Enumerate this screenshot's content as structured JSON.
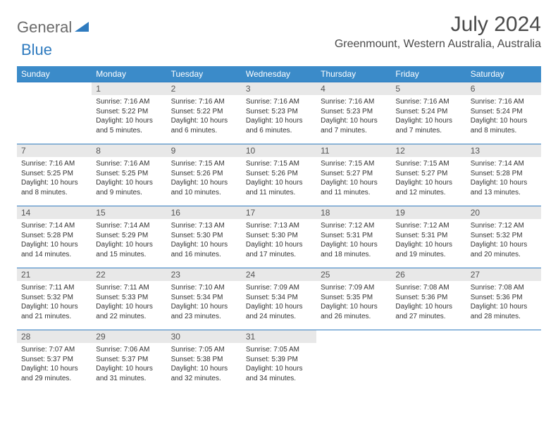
{
  "logo": {
    "word1": "General",
    "word2": "Blue"
  },
  "title": "July 2024",
  "location": "Greenmount, Western Australia, Australia",
  "colors": {
    "header_bg": "#3b8bc9",
    "row_border": "#2f7bbf",
    "daynum_bg": "#e8e8e8",
    "text": "#333333",
    "title_text": "#4a4a4a",
    "logo_gray": "#6b6b6b",
    "logo_blue": "#2f7bbf"
  },
  "day_headers": [
    "Sunday",
    "Monday",
    "Tuesday",
    "Wednesday",
    "Thursday",
    "Friday",
    "Saturday"
  ],
  "weeks": [
    [
      {
        "n": "",
        "sr": "",
        "ss": "",
        "dl": "",
        "empty": true
      },
      {
        "n": "1",
        "sr": "Sunrise: 7:16 AM",
        "ss": "Sunset: 5:22 PM",
        "dl": "Daylight: 10 hours and 5 minutes."
      },
      {
        "n": "2",
        "sr": "Sunrise: 7:16 AM",
        "ss": "Sunset: 5:22 PM",
        "dl": "Daylight: 10 hours and 6 minutes."
      },
      {
        "n": "3",
        "sr": "Sunrise: 7:16 AM",
        "ss": "Sunset: 5:23 PM",
        "dl": "Daylight: 10 hours and 6 minutes."
      },
      {
        "n": "4",
        "sr": "Sunrise: 7:16 AM",
        "ss": "Sunset: 5:23 PM",
        "dl": "Daylight: 10 hours and 7 minutes."
      },
      {
        "n": "5",
        "sr": "Sunrise: 7:16 AM",
        "ss": "Sunset: 5:24 PM",
        "dl": "Daylight: 10 hours and 7 minutes."
      },
      {
        "n": "6",
        "sr": "Sunrise: 7:16 AM",
        "ss": "Sunset: 5:24 PM",
        "dl": "Daylight: 10 hours and 8 minutes."
      }
    ],
    [
      {
        "n": "7",
        "sr": "Sunrise: 7:16 AM",
        "ss": "Sunset: 5:25 PM",
        "dl": "Daylight: 10 hours and 8 minutes."
      },
      {
        "n": "8",
        "sr": "Sunrise: 7:16 AM",
        "ss": "Sunset: 5:25 PM",
        "dl": "Daylight: 10 hours and 9 minutes."
      },
      {
        "n": "9",
        "sr": "Sunrise: 7:15 AM",
        "ss": "Sunset: 5:26 PM",
        "dl": "Daylight: 10 hours and 10 minutes."
      },
      {
        "n": "10",
        "sr": "Sunrise: 7:15 AM",
        "ss": "Sunset: 5:26 PM",
        "dl": "Daylight: 10 hours and 11 minutes."
      },
      {
        "n": "11",
        "sr": "Sunrise: 7:15 AM",
        "ss": "Sunset: 5:27 PM",
        "dl": "Daylight: 10 hours and 11 minutes."
      },
      {
        "n": "12",
        "sr": "Sunrise: 7:15 AM",
        "ss": "Sunset: 5:27 PM",
        "dl": "Daylight: 10 hours and 12 minutes."
      },
      {
        "n": "13",
        "sr": "Sunrise: 7:14 AM",
        "ss": "Sunset: 5:28 PM",
        "dl": "Daylight: 10 hours and 13 minutes."
      }
    ],
    [
      {
        "n": "14",
        "sr": "Sunrise: 7:14 AM",
        "ss": "Sunset: 5:28 PM",
        "dl": "Daylight: 10 hours and 14 minutes."
      },
      {
        "n": "15",
        "sr": "Sunrise: 7:14 AM",
        "ss": "Sunset: 5:29 PM",
        "dl": "Daylight: 10 hours and 15 minutes."
      },
      {
        "n": "16",
        "sr": "Sunrise: 7:13 AM",
        "ss": "Sunset: 5:30 PM",
        "dl": "Daylight: 10 hours and 16 minutes."
      },
      {
        "n": "17",
        "sr": "Sunrise: 7:13 AM",
        "ss": "Sunset: 5:30 PM",
        "dl": "Daylight: 10 hours and 17 minutes."
      },
      {
        "n": "18",
        "sr": "Sunrise: 7:12 AM",
        "ss": "Sunset: 5:31 PM",
        "dl": "Daylight: 10 hours and 18 minutes."
      },
      {
        "n": "19",
        "sr": "Sunrise: 7:12 AM",
        "ss": "Sunset: 5:31 PM",
        "dl": "Daylight: 10 hours and 19 minutes."
      },
      {
        "n": "20",
        "sr": "Sunrise: 7:12 AM",
        "ss": "Sunset: 5:32 PM",
        "dl": "Daylight: 10 hours and 20 minutes."
      }
    ],
    [
      {
        "n": "21",
        "sr": "Sunrise: 7:11 AM",
        "ss": "Sunset: 5:32 PM",
        "dl": "Daylight: 10 hours and 21 minutes."
      },
      {
        "n": "22",
        "sr": "Sunrise: 7:11 AM",
        "ss": "Sunset: 5:33 PM",
        "dl": "Daylight: 10 hours and 22 minutes."
      },
      {
        "n": "23",
        "sr": "Sunrise: 7:10 AM",
        "ss": "Sunset: 5:34 PM",
        "dl": "Daylight: 10 hours and 23 minutes."
      },
      {
        "n": "24",
        "sr": "Sunrise: 7:09 AM",
        "ss": "Sunset: 5:34 PM",
        "dl": "Daylight: 10 hours and 24 minutes."
      },
      {
        "n": "25",
        "sr": "Sunrise: 7:09 AM",
        "ss": "Sunset: 5:35 PM",
        "dl": "Daylight: 10 hours and 26 minutes."
      },
      {
        "n": "26",
        "sr": "Sunrise: 7:08 AM",
        "ss": "Sunset: 5:36 PM",
        "dl": "Daylight: 10 hours and 27 minutes."
      },
      {
        "n": "27",
        "sr": "Sunrise: 7:08 AM",
        "ss": "Sunset: 5:36 PM",
        "dl": "Daylight: 10 hours and 28 minutes."
      }
    ],
    [
      {
        "n": "28",
        "sr": "Sunrise: 7:07 AM",
        "ss": "Sunset: 5:37 PM",
        "dl": "Daylight: 10 hours and 29 minutes."
      },
      {
        "n": "29",
        "sr": "Sunrise: 7:06 AM",
        "ss": "Sunset: 5:37 PM",
        "dl": "Daylight: 10 hours and 31 minutes."
      },
      {
        "n": "30",
        "sr": "Sunrise: 7:05 AM",
        "ss": "Sunset: 5:38 PM",
        "dl": "Daylight: 10 hours and 32 minutes."
      },
      {
        "n": "31",
        "sr": "Sunrise: 7:05 AM",
        "ss": "Sunset: 5:39 PM",
        "dl": "Daylight: 10 hours and 34 minutes."
      },
      {
        "n": "",
        "sr": "",
        "ss": "",
        "dl": "",
        "empty": true
      },
      {
        "n": "",
        "sr": "",
        "ss": "",
        "dl": "",
        "empty": true
      },
      {
        "n": "",
        "sr": "",
        "ss": "",
        "dl": "",
        "empty": true
      }
    ]
  ]
}
